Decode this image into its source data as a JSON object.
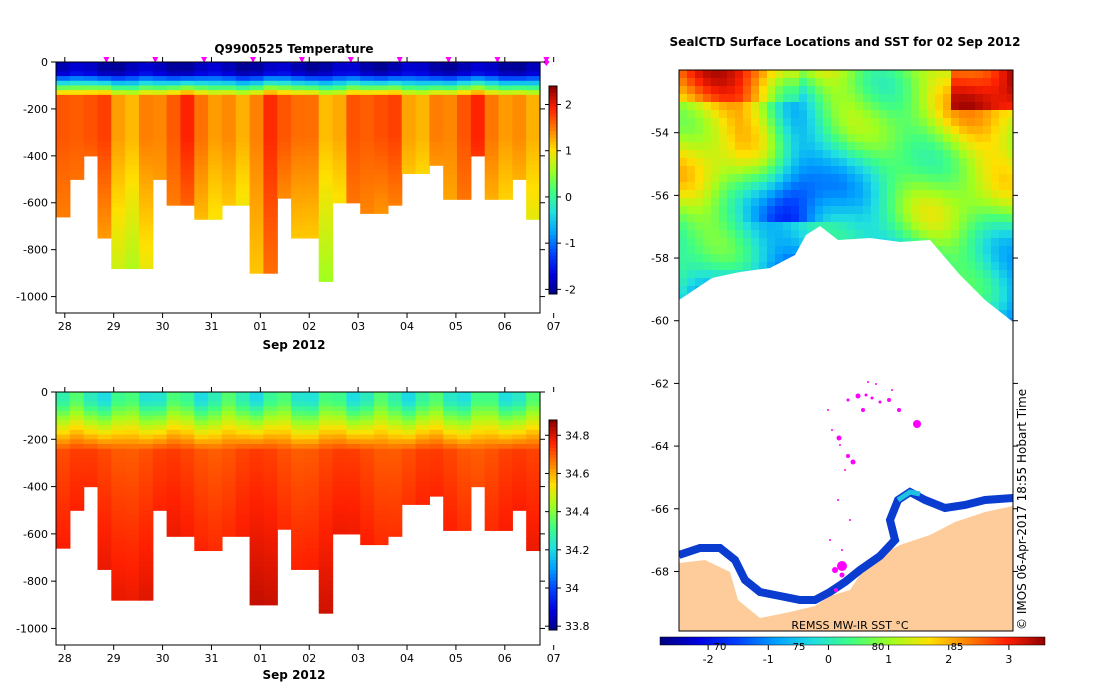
{
  "chart_data": [
    {
      "type": "heatmap",
      "title": "Q9900525  Temperature",
      "xlabel": "Sep 2012",
      "ylabel": "",
      "x_ticks": [
        "28",
        "29",
        "30",
        "31",
        "01",
        "02",
        "03",
        "04",
        "05",
        "06",
        "07"
      ],
      "y_ticks": [
        "0",
        "-200",
        "-400",
        "-600",
        "-800",
        "-1000"
      ],
      "ylim": [
        -1070,
        0
      ],
      "colorbar": {
        "ticks": [
          "2",
          "1",
          "0",
          "-1",
          "-2"
        ],
        "range": [
          -2.1,
          2.4
        ]
      },
      "surface_markers_days": [
        0.85,
        1.85,
        2.85,
        3.85,
        4.85,
        5.85,
        6.85,
        7.85,
        8.85,
        9.85
      ],
      "profile_max_depths": [
        -660,
        -500,
        -400,
        -750,
        -880,
        -880,
        -880,
        -500,
        -610,
        -610,
        -670,
        -670,
        -610,
        -610,
        -900,
        -900,
        -580,
        -750,
        -750,
        -935,
        -600,
        -600,
        -645,
        -645,
        -610,
        -475,
        -475,
        -440,
        -585,
        -585,
        -400,
        -585,
        -585,
        -500,
        -670
      ]
    },
    {
      "type": "heatmap",
      "title": "",
      "xlabel": "Sep 2012",
      "x_ticks": [
        "28",
        "29",
        "30",
        "31",
        "01",
        "02",
        "03",
        "04",
        "05",
        "06",
        "07"
      ],
      "y_ticks": [
        "0",
        "-200",
        "-400",
        "-600",
        "-800",
        "-1000"
      ],
      "ylim": [
        -1070,
        0
      ],
      "colorbar": {
        "ticks": [
          "34.8",
          "34.6",
          "34.4",
          "34.2",
          "34",
          "33.8"
        ],
        "range": [
          33.78,
          34.88
        ]
      }
    },
    {
      "type": "heatmap",
      "title": "SealCTD Surface Locations and SST for 02 Sep 2012",
      "y_ticks": [
        "-54",
        "-56",
        "-58",
        "-60",
        "-62",
        "-64",
        "-66",
        "-68"
      ],
      "colorbar": {
        "label": "REMSS MW-IR SST °C",
        "ticks": [
          "-2",
          "-1",
          "0",
          "1",
          "2",
          "3"
        ],
        "overlay_ticks": [
          "70",
          "75",
          "80",
          "85"
        ],
        "range": [
          -2.8,
          3.6
        ]
      },
      "credit": "© IMOS 06-Apr-2017 18:55 Hobart Time"
    }
  ],
  "colors": {
    "colormap": [
      "#00007f",
      "#0000e0",
      "#0040ff",
      "#00a0ff",
      "#20e0e0",
      "#40ff80",
      "#a0ff20",
      "#ffe000",
      "#ff8000",
      "#ff2000",
      "#900000"
    ],
    "land": "#fdcc9a",
    "marker": "#ff00ff"
  }
}
